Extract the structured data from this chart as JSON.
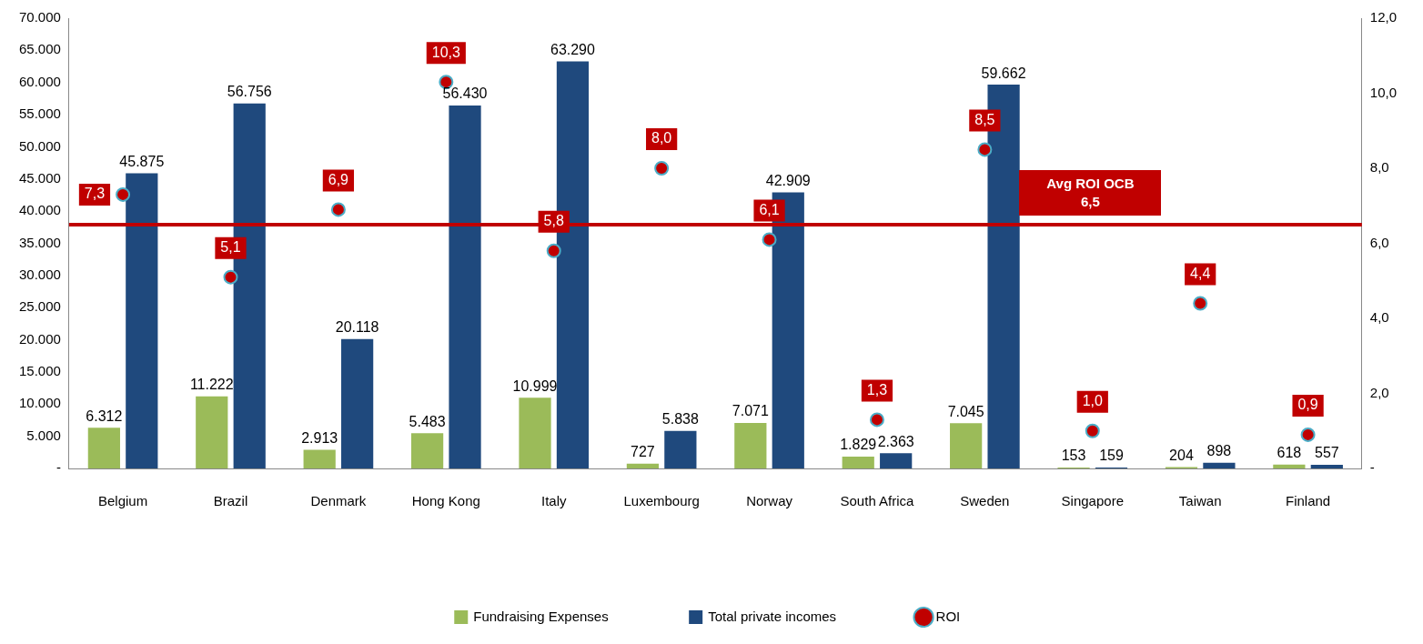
{
  "chart_data": {
    "type": "bar",
    "categories": [
      "Belgium",
      "Brazil",
      "Denmark",
      "Hong Kong",
      "Italy",
      "Luxembourg",
      "Norway",
      "South Africa",
      "Sweden",
      "Singapore",
      "Taiwan",
      "Finland"
    ],
    "series": [
      {
        "name": "Fundraising Expenses",
        "color": "#9bbb59",
        "values": [
          6312,
          11222,
          2913,
          5483,
          10999,
          727,
          7071,
          1829,
          7045,
          153,
          204,
          618
        ],
        "value_labels": [
          "6.312",
          "11.222",
          "2.913",
          "5.483",
          "10.999",
          "727",
          "7.071",
          "1.829",
          "7.045",
          "153",
          "204",
          "618"
        ]
      },
      {
        "name": "Total private incomes",
        "color": "#1f497d",
        "values": [
          45875,
          56756,
          20118,
          56430,
          63290,
          5838,
          42909,
          2363,
          59662,
          159,
          898,
          557
        ],
        "value_labels": [
          "45.875",
          "56.756",
          "20.118",
          "56.430",
          "63.290",
          "5.838",
          "42.909",
          "2.363",
          "59.662",
          "159",
          "898",
          "557"
        ]
      },
      {
        "name": "ROI",
        "type": "scatter",
        "axis": "y2",
        "color": "#c00000",
        "marker": "circle",
        "values": [
          7.3,
          5.1,
          6.9,
          10.3,
          5.8,
          8.0,
          6.1,
          1.3,
          8.5,
          1.0,
          4.4,
          0.9
        ],
        "value_labels": [
          "7,3",
          "5,1",
          "6,9",
          "10,3",
          "5,8",
          "8,0",
          "6,1",
          "1,3",
          "8,5",
          "1,0",
          "4,4",
          "0,9"
        ]
      }
    ],
    "ylim": [
      0,
      70000
    ],
    "yticks": [
      {
        "value": 0,
        "label": "-"
      },
      {
        "value": 5000,
        "label": "5.000"
      },
      {
        "value": 10000,
        "label": "10.000"
      },
      {
        "value": 15000,
        "label": "15.000"
      },
      {
        "value": 20000,
        "label": "20.000"
      },
      {
        "value": 25000,
        "label": "25.000"
      },
      {
        "value": 30000,
        "label": "30.000"
      },
      {
        "value": 35000,
        "label": "35.000"
      },
      {
        "value": 40000,
        "label": "40.000"
      },
      {
        "value": 45000,
        "label": "45.000"
      },
      {
        "value": 50000,
        "label": "50.000"
      },
      {
        "value": 55000,
        "label": "55.000"
      },
      {
        "value": 60000,
        "label": "60.000"
      },
      {
        "value": 65000,
        "label": "65.000"
      },
      {
        "value": 70000,
        "label": "70.000"
      }
    ],
    "y2lim": [
      0,
      12
    ],
    "y2ticks": [
      {
        "value": 0,
        "label": "-"
      },
      {
        "value": 2,
        "label": "2,0"
      },
      {
        "value": 4,
        "label": "4,0"
      },
      {
        "value": 6,
        "label": "6,0"
      },
      {
        "value": 8,
        "label": "8,0"
      },
      {
        "value": 10,
        "label": "10,0"
      },
      {
        "value": 12,
        "label": "12,0"
      }
    ],
    "ref_lines": [
      {
        "axis": "y2",
        "value": 6.5,
        "label": "Avg ROI OCB\n6,5",
        "color": "#c00000"
      }
    ],
    "legend": "bottom",
    "grid": false
  }
}
